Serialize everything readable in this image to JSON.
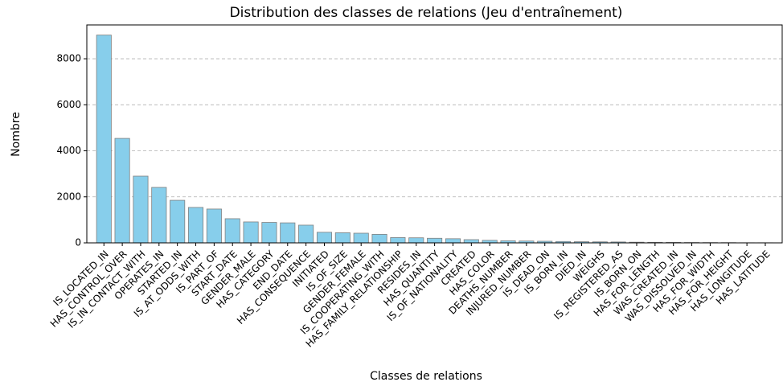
{
  "chart_data": {
    "type": "bar",
    "title": "Distribution des classes de relations (Jeu d'entraînement)",
    "xlabel": "Classes de relations",
    "ylabel": "Nombre",
    "categories": [
      "IS_LOCATED_IN",
      "HAS_CONTROL_OVER",
      "IS_IN_CONTACT_WITH",
      "OPERATES_IN",
      "STARTED_IN",
      "IS_AT_ODDS_WITH",
      "IS_PART_OF",
      "START_DATE",
      "GENDER_MALE",
      "HAS_CATEGORY",
      "END_DATE",
      "HAS_CONSEQUENCE",
      "INITIATED",
      "IS_OF_SIZE",
      "GENDER_FEMALE",
      "IS_COOPERATING_WITH",
      "HAS_FAMILY_RELATIONSHIP",
      "RESIDES_IN",
      "HAS_QUANTITY",
      "IS_OF_NATIONALITY",
      "CREATED",
      "HAS_COLOR",
      "DEATHS_NUMBER",
      "INJURED_NUMBER",
      "IS_DEAD_ON",
      "IS_BORN_IN",
      "DIED_IN",
      "WEIGHS",
      "IS_REGISTERED_AS",
      "IS_BORN_ON",
      "HAS_FOR_LENGTH",
      "WAS_CREATED_IN",
      "WAS_DISSOLVED_IN",
      "HAS_FOR_WIDTH",
      "HAS_FOR_HEIGHT",
      "HAS_LONGITUDE",
      "HAS_LATITUDE"
    ],
    "values": [
      9030,
      4540,
      2900,
      2410,
      1850,
      1540,
      1470,
      1050,
      910,
      890,
      870,
      770,
      460,
      440,
      420,
      370,
      230,
      220,
      200,
      180,
      140,
      110,
      90,
      80,
      70,
      60,
      50,
      45,
      40,
      30,
      25,
      20,
      15,
      12,
      10,
      5,
      5
    ],
    "color": "#87ceeb",
    "edgecolor": "#808080",
    "ylim": [
      0,
      9470
    ],
    "yticks": [
      0,
      2000,
      4000,
      6000,
      8000
    ],
    "grid": true
  }
}
